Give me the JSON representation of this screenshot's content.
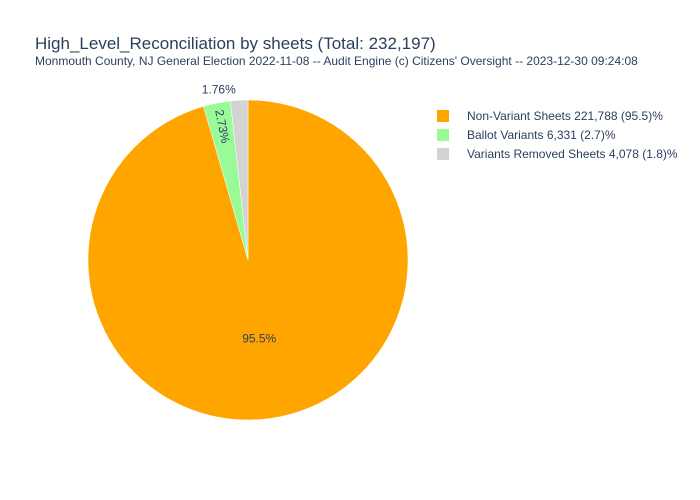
{
  "chart_data": {
    "type": "pie",
    "title": "High_Level_Reconciliation by sheets (Total: 232,197)",
    "subtitle": "Monmouth County, NJ General Election 2022-11-08 -- Audit Engine (c) Citizens' Oversight -- 2023-12-30 09:24:08",
    "slices": [
      {
        "label": "Non-Variant Sheets",
        "value": 221788,
        "percent_text": "95.5%",
        "legend": "Non-Variant Sheets  221,788 (95.5)%",
        "color": "#FFA500"
      },
      {
        "label": "Ballot Variants",
        "value": 6331,
        "percent_text": "2.73%",
        "legend": "Ballot Variants  6,331 (2.7)%",
        "color": "#98FB98"
      },
      {
        "label": "Variants Removed Sheets",
        "value": 4078,
        "percent_text": "1.76%",
        "legend": "Variants Removed Sheets  4,078 (1.8)%",
        "color": "#D3D3D3"
      }
    ],
    "legend_position": "top-right"
  }
}
